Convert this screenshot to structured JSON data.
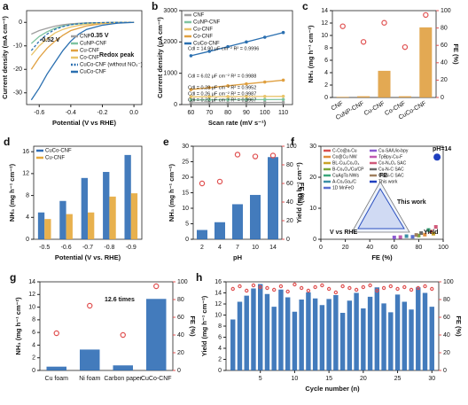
{
  "chart_data": [
    {
      "type": "line",
      "label": "a",
      "xlabel": "Potential (V vs RHE)",
      "ylabel": "Current density (mA cm⁻²)",
      "x": [
        -0.65,
        -0.6,
        -0.55,
        -0.5,
        -0.45,
        -0.4,
        -0.35,
        -0.3,
        -0.2,
        -0.1,
        0.0
      ],
      "xlim": [
        -0.68,
        0.05
      ],
      "xticks": [
        -0.6,
        -0.4,
        -0.2,
        {
          "value": 0,
          "label": "0.0"
        }
      ],
      "ylim": [
        -35,
        5
      ],
      "yticks": [
        -30,
        -20,
        -10,
        0
      ],
      "legend": "center-right",
      "series": [
        {
          "name": "CNF",
          "color": "#9e9e9e",
          "values": [
            -5,
            -3.5,
            -2.5,
            -1.6,
            -1,
            -0.6,
            -0.4,
            -0.2,
            -0.1,
            0,
            0
          ]
        },
        {
          "name": "CuNP-CNF",
          "color": "#7fc3a0",
          "values": [
            -9,
            -6,
            -4,
            -2.5,
            -1.5,
            -1,
            -0.6,
            -0.4,
            -0.2,
            0,
            0
          ]
        },
        {
          "name": "Cu-CNF",
          "color": "#e0a040",
          "values": [
            -20,
            -15,
            -11,
            -8,
            -5.5,
            -3.5,
            -2.5,
            -1.5,
            -0.5,
            -0.1,
            0
          ]
        },
        {
          "name": "Co-CNF",
          "color": "#e9c46a",
          "values": [
            -14,
            -10,
            -7,
            -4.5,
            -3,
            -2,
            -1.3,
            -0.8,
            -0.3,
            -0.1,
            0
          ]
        },
        {
          "name": "CuCo-CNF (without NO₃⁻)",
          "color": "#2a6fb0",
          "dash": true,
          "values": [
            -12,
            -8,
            -5,
            -3,
            -1.8,
            -1,
            -0.6,
            -0.3,
            -0.1,
            0,
            0
          ]
        },
        {
          "name": "CuCo-CNF",
          "color": "#2a6fb0",
          "values": [
            -33,
            -28,
            -22,
            -17,
            -12,
            -8,
            -5,
            -3,
            -1.2,
            -0.3,
            0
          ]
        }
      ],
      "annotations": [
        "-0.52 V",
        "-0.35 V",
        "Redox peak"
      ]
    },
    {
      "type": "line",
      "label": "b",
      "markers": true,
      "xlabel": "Scan rate (mV s⁻¹)",
      "ylabel": "Current density (μA cm⁻²)",
      "x": [
        60,
        70,
        80,
        90,
        100,
        110
      ],
      "xlim": [
        55,
        115
      ],
      "xticks": [
        60,
        70,
        80,
        90,
        100,
        110
      ],
      "ylim": [
        0,
        3000
      ],
      "yticks": [
        0,
        1000,
        2000,
        3000
      ],
      "legend": "upper-left",
      "series": [
        {
          "name": "CNF",
          "color": "#9e9e9e",
          "values": [
            60,
            62,
            64,
            66,
            68,
            70
          ]
        },
        {
          "name": "CuNP-CNF",
          "color": "#7fc3a0",
          "values": [
            150,
            153,
            155,
            158,
            160,
            163
          ]
        },
        {
          "name": "Cu-CNF",
          "color": "#e9c46a",
          "values": [
            250,
            253,
            256,
            258,
            261,
            264
          ]
        },
        {
          "name": "Co-CNF",
          "color": "#e0a040",
          "values": [
            480,
            540,
            600,
            660,
            720,
            780
          ]
        },
        {
          "name": "CuCo-CNF",
          "color": "#2a6fb0",
          "values": [
            1560,
            1700,
            1850,
            2000,
            2150,
            2300
          ]
        }
      ],
      "annotations": [
        "Cdl = 14.90 μF cm⁻² R² = 0.9996",
        "Cdl = 6.02 μF cm⁻² R² = 0.9988",
        "Cdl = 0.28 μF cm⁻² R² = 0.9952",
        "Cdl = 0.26 μF cm⁻² R² = 0.9987",
        "Cdl = 0.22 μF cm⁻² R² = 0.9967"
      ]
    },
    {
      "type": "bar",
      "label": "c",
      "ylabel": "NH₃ (mg h⁻¹ cm⁻²)",
      "y2label": "FE (%)",
      "categories": [
        "CNF",
        "CuNP-CNF",
        "Cu-CNF",
        "Co-CNF",
        "CuCo-CNF"
      ],
      "ylim": [
        0,
        14
      ],
      "yticks": [
        0,
        2,
        4,
        6,
        8,
        10,
        12,
        14
      ],
      "y2lim": [
        0,
        100
      ],
      "y2ticks": [
        0,
        20,
        40,
        60,
        80,
        100
      ],
      "series": [
        {
          "color": "#e0a040",
          "values": [
            0.1,
            0.2,
            4.3,
            0.2,
            11.3
          ]
        },
        {
          "type": "scatter",
          "axis": "y2",
          "color": "#e05050",
          "values": [
            82,
            64,
            86,
            58,
            95
          ]
        }
      ]
    },
    {
      "type": "bar",
      "label": "d",
      "xlabel": "Potential (V vs. RHE)",
      "ylabel": "NH₃ (mg h⁻¹ cm⁻²)",
      "categories": [
        "-0.5",
        "-0.6",
        "-0.7",
        "-0.8",
        "-0.9"
      ],
      "ylim": [
        0,
        17
      ],
      "yticks": [
        0,
        4,
        8,
        12,
        16
      ],
      "legend": "upper-left",
      "series": [
        {
          "name": "CuCo-CNF",
          "color": "#2f6db5",
          "values": [
            4.9,
            7.0,
            11.2,
            12.3,
            15.4
          ]
        },
        {
          "name": "Cu-CNF",
          "color": "#e5a83b",
          "values": [
            3.7,
            4.6,
            4.9,
            7.8,
            8.4
          ]
        }
      ]
    },
    {
      "type": "bar",
      "label": "e",
      "xlabel": "pH",
      "ylabel": "NH₃ (mg h⁻¹ cm⁻²)",
      "y2label": "FE (%)",
      "categories": [
        "2",
        "4",
        "7",
        "10",
        "14"
      ],
      "ylim": [
        0,
        30
      ],
      "yticks": [
        0,
        5,
        10,
        15,
        20,
        25,
        30
      ],
      "y2lim": [
        0,
        100
      ],
      "y2ticks": [
        0,
        20,
        40,
        60,
        80,
        100
      ],
      "series": [
        {
          "color": "#2f6db5",
          "values": [
            3.0,
            5.5,
            11.3,
            14.3,
            26.5
          ]
        },
        {
          "type": "scatter",
          "axis": "y2",
          "color": "#e05050",
          "values": [
            60,
            62,
            91,
            89,
            90
          ]
        }
      ]
    },
    {
      "type": "scatter",
      "label": "f",
      "xlabel": "FE (%)",
      "ylabel": "Yield (mg h⁻¹ cm⁻²)",
      "xlim": [
        0,
        100
      ],
      "xticks": [
        0,
        20,
        40,
        60,
        80,
        100
      ],
      "ylim": [
        0,
        30
      ],
      "yticks": [
        0,
        10,
        20,
        30
      ],
      "legend": "upper-left",
      "series": [
        {
          "name": "C-Co@a-Cu",
          "color": "#d94f4f",
          "x": [
            90
          ],
          "values": [
            2.5
          ]
        },
        {
          "name": "Co@Cu NW",
          "color": "#e08b3a",
          "x": [
            85
          ],
          "values": [
            1.5
          ]
        },
        {
          "name": "BL-Cu₂Co₂O₄",
          "color": "#c9a227",
          "x": [
            92
          ],
          "values": [
            1.8
          ]
        },
        {
          "name": "B-Co₃O₄/Cu/CP",
          "color": "#7aa63a",
          "x": [
            80
          ],
          "values": [
            1.2
          ]
        },
        {
          "name": "CuAgTa NWs",
          "color": "#3aa67a",
          "x": [
            88
          ],
          "values": [
            3
          ]
        },
        {
          "name": "A-Co₂Ga₂/C",
          "color": "#3a8fa6",
          "x": [
            70
          ],
          "values": [
            1
          ]
        },
        {
          "name": "1D MnFeO",
          "color": "#5a6fd0",
          "x": [
            75
          ],
          "values": [
            0.8
          ]
        },
        {
          "name": "Cu-SA/Uio-bpy",
          "color": "#8a5ad0",
          "x": [
            60
          ],
          "values": [
            0.6
          ]
        },
        {
          "name": "TpBpy-Cu-F",
          "color": "#c05ab0",
          "x": [
            65
          ],
          "values": [
            0.7
          ]
        },
        {
          "name": "Co-N₄O₂ SAC",
          "color": "#d05a7a",
          "x": [
            94
          ],
          "values": [
            4
          ]
        },
        {
          "name": "Cu-N-C SAC",
          "color": "#6a6a6a",
          "x": [
            82
          ],
          "values": [
            2
          ]
        },
        {
          "name": "Co-N-C SAC",
          "color": "#a08060",
          "x": [
            78
          ],
          "values": [
            1.4
          ]
        },
        {
          "name": "This work",
          "color": "#1f3fbf",
          "x": [
            95
          ],
          "values": [
            26.5
          ]
        }
      ],
      "annotations": [
        "pH=14",
        "This work",
        "FE",
        "V vs RHE",
        "Yield"
      ]
    },
    {
      "type": "bar",
      "label": "g",
      "ylabel": "NH₃ (mg h⁻¹ cm⁻²)",
      "y2label": "FE (%)",
      "categories": [
        "Cu foam",
        "Ni foam",
        "Carbon paper",
        "CuCo-CNF"
      ],
      "ylim": [
        0,
        14
      ],
      "yticks": [
        0,
        2,
        4,
        6,
        8,
        10,
        12,
        14
      ],
      "y2lim": [
        0,
        100
      ],
      "y2ticks": [
        0,
        20,
        40,
        60,
        80,
        100
      ],
      "series": [
        {
          "color": "#2f6db5",
          "values": [
            0.6,
            3.3,
            0.8,
            11.3
          ]
        },
        {
          "type": "scatter",
          "axis": "y2",
          "color": "#e05050",
          "values": [
            42,
            73,
            40,
            95
          ]
        }
      ],
      "annotations": [
        "12.6 times"
      ]
    },
    {
      "type": "bar",
      "label": "h",
      "xlabel": "Cycle number (n)",
      "ylabel": "Yield (mg h⁻¹ cm⁻²)",
      "y2label": "FE (%)",
      "x": [
        1,
        2,
        3,
        4,
        5,
        6,
        7,
        8,
        9,
        10,
        11,
        12,
        13,
        14,
        15,
        16,
        17,
        18,
        19,
        20,
        21,
        22,
        23,
        24,
        25,
        26,
        27,
        28,
        29,
        30
      ],
      "xlim": [
        0,
        31
      ],
      "xticks": [
        5,
        10,
        15,
        20,
        25,
        30
      ],
      "ylim": [
        0,
        16
      ],
      "yticks": [
        0,
        2,
        4,
        6,
        8,
        10,
        12,
        14,
        16
      ],
      "y2lim": [
        0,
        100
      ],
      "y2ticks": [
        0,
        20,
        40,
        60,
        80,
        100
      ],
      "series": [
        {
          "color": "#2f6db5",
          "values": [
            9.2,
            12.4,
            13.5,
            14.8,
            15.6,
            13.8,
            11.5,
            14.6,
            13.2,
            10.6,
            12.8,
            14.1,
            13.0,
            11.8,
            12.9,
            13.6,
            10.4,
            12.6,
            14.0,
            11.2,
            13.3,
            15.0,
            12.1,
            10.5,
            13.7,
            12.4,
            11.0,
            15.0,
            14.0,
            11.5
          ]
        },
        {
          "type": "scatter",
          "axis": "y2",
          "color": "#e05050",
          "values": [
            92,
            95,
            90,
            96,
            94,
            93,
            91,
            95,
            89,
            97,
            93,
            90,
            94,
            96,
            92,
            88,
            95,
            93,
            91,
            94,
            96,
            90,
            93,
            95,
            92,
            94,
            91,
            93,
            95,
            92
          ]
        }
      ]
    }
  ]
}
